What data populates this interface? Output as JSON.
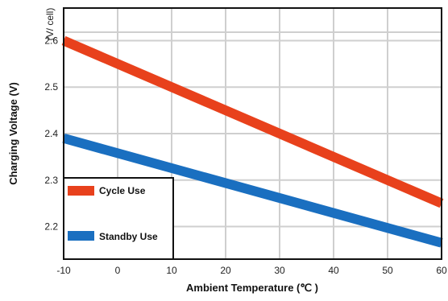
{
  "chart_data": {
    "type": "line",
    "title": "",
    "xlabel": "Ambient Temperature (℃ )",
    "ylabel": "Charging Voltage (V)",
    "yunit": "(V/ cell)",
    "xlim": [
      -10,
      60
    ],
    "ylim": [
      2.13,
      2.67
    ],
    "x_ticks": [
      -10,
      0,
      10,
      20,
      30,
      40,
      50,
      60
    ],
    "x_tick_labels": [
      "-10",
      "0",
      "10",
      "20",
      "30",
      "40",
      "50",
      "60"
    ],
    "y_ticks": [
      2.2,
      2.3,
      2.4,
      2.5,
      2.6
    ],
    "y_tick_labels": [
      "2.2",
      "2.3",
      "2.4",
      "2.5",
      "2.6"
    ],
    "grid": true,
    "legend_position": "bottom-left",
    "series": [
      {
        "name": "Cycle Use",
        "color": "#e8411c",
        "x": [
          -10,
          60
        ],
        "y": [
          2.6,
          2.25
        ]
      },
      {
        "name": "Standby Use",
        "color": "#1a6fc0",
        "x": [
          -10,
          60
        ],
        "y": [
          2.39,
          2.165
        ]
      }
    ]
  }
}
